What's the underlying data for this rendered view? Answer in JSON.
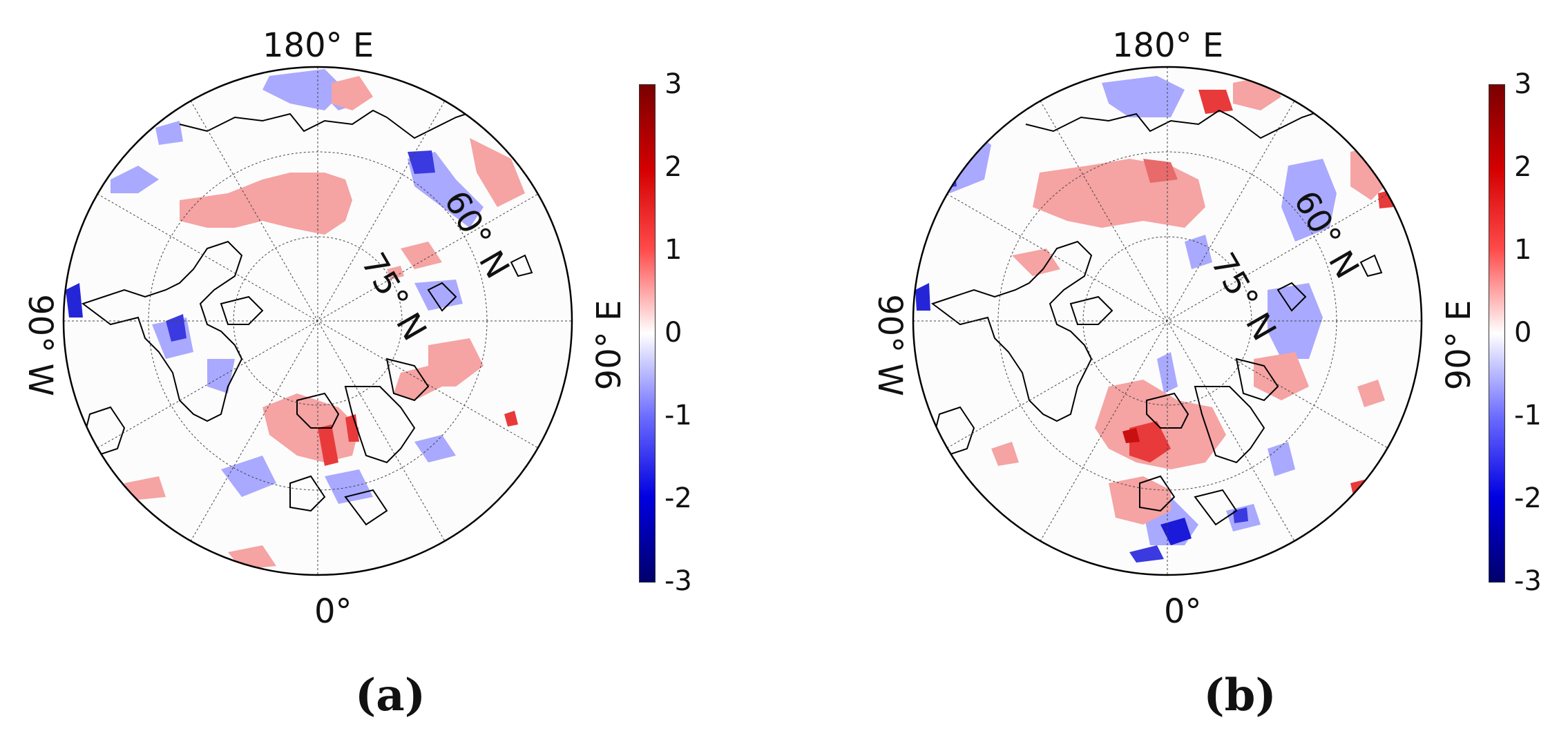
{
  "panels": [
    {
      "id": "a",
      "caption": "(a)",
      "labels": {
        "top": "180° E",
        "bottom": "0°",
        "left": "90° W",
        "right": "90° E",
        "lat60": "60° N",
        "lat75": "75° N"
      },
      "colorbar_ticks": [
        "3",
        "2",
        "1",
        "0",
        "-1",
        "-2",
        "-3"
      ]
    },
    {
      "id": "b",
      "caption": "(b)",
      "labels": {
        "top": "180° E",
        "bottom": "0°",
        "left": "90° W",
        "right": "90° E",
        "lat60": "60° N",
        "lat75": "75° N"
      },
      "colorbar_ticks": [
        "3",
        "2",
        "1",
        "0",
        "-1",
        "-2",
        "-3"
      ]
    }
  ],
  "colors": {
    "strong_positive": "#d40000",
    "positive": "#f39a9a",
    "neutral": "#ffffff",
    "negative": "#9b9bff",
    "strong_negative": "#1a1ad8"
  }
}
